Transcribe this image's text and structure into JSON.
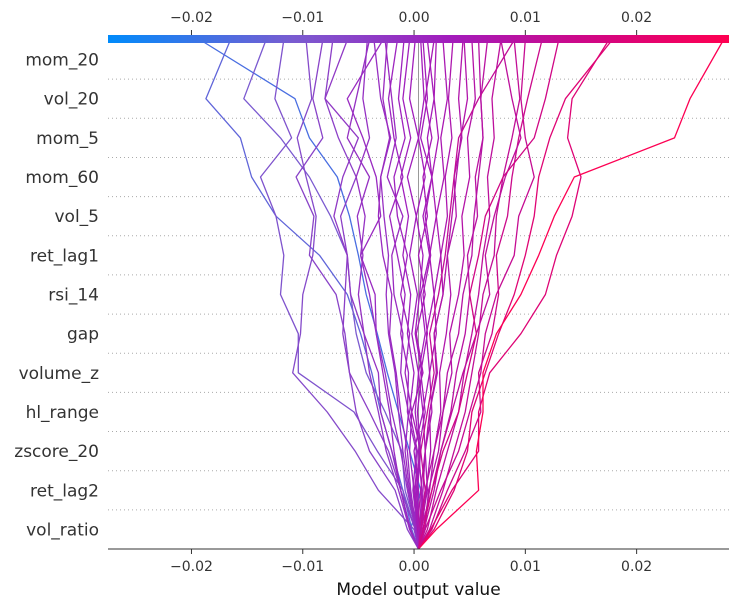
{
  "chart_data": {
    "type": "line",
    "title": "",
    "xlabel": "Model output value",
    "ylabel": "",
    "xlim": [
      -0.0275,
      0.0283
    ],
    "base_value": 0.0004,
    "x_ticks": [
      -0.02,
      -0.01,
      0.0,
      0.01,
      0.02
    ],
    "x_tick_labels": [
      "−0.02",
      "−0.01",
      "0.00",
      "0.01",
      "0.02"
    ],
    "features": [
      "mom_20",
      "vol_20",
      "mom_5",
      "mom_60",
      "vol_5",
      "ret_lag1",
      "rsi_14",
      "gap",
      "volume_z",
      "hl_range",
      "zscore_20",
      "ret_lag2",
      "vol_ratio"
    ],
    "colormap": [
      "#008bfb",
      "#7a5bd0",
      "#a21cbc",
      "#d5057f",
      "#ff0051"
    ],
    "series": [
      {
        "name": "s01",
        "values": [
          0.0004,
          -0.0003,
          0.0006,
          -0.0004,
          -0.0014,
          -0.0024,
          -0.0033,
          -0.0043,
          -0.005,
          -0.0058,
          -0.0069,
          -0.0094,
          -0.0107,
          -0.0192
        ]
      },
      {
        "name": "s02",
        "values": [
          0.0004,
          -0.0002,
          -0.001,
          -0.002,
          -0.003,
          -0.0038,
          -0.0048,
          -0.006,
          -0.0085,
          -0.0124,
          -0.0146,
          -0.0156,
          -0.0187,
          -0.0165
        ]
      },
      {
        "name": "s03",
        "values": [
          0.0004,
          0.0002,
          -0.0008,
          -0.0011,
          -0.0026,
          -0.0043,
          -0.0052,
          -0.0057,
          -0.006,
          -0.0075,
          -0.0094,
          -0.012,
          -0.0153,
          -0.0133
        ]
      },
      {
        "name": "s04",
        "values": [
          0.0004,
          0.0001,
          -0.001,
          -0.0033,
          -0.0054,
          -0.0104,
          -0.0104,
          -0.012,
          -0.0117,
          -0.0124,
          -0.0138,
          -0.011,
          -0.0125,
          -0.0117
        ]
      },
      {
        "name": "s05",
        "values": [
          0.0004,
          0.0,
          -0.0032,
          -0.0053,
          -0.0078,
          -0.0109,
          -0.0102,
          -0.01,
          -0.0091,
          -0.0088,
          -0.0097,
          -0.0105,
          -0.0092,
          -0.0097
        ]
      },
      {
        "name": "s06",
        "values": [
          0.0004,
          -0.0006,
          -0.0017,
          -0.004,
          -0.0052,
          -0.0058,
          -0.0062,
          -0.007,
          -0.0094,
          -0.009,
          -0.0106,
          -0.0082,
          -0.0091,
          -0.0082
        ]
      },
      {
        "name": "s07",
        "values": [
          0.0004,
          0.0001,
          -0.0012,
          -0.0023,
          -0.004,
          -0.0058,
          -0.0064,
          -0.0062,
          -0.006,
          -0.0066,
          -0.0052,
          -0.0068,
          -0.008,
          -0.0073
        ]
      },
      {
        "name": "s08",
        "values": [
          0.0004,
          -0.0004,
          -0.0014,
          -0.0025,
          -0.0032,
          -0.004,
          -0.0045,
          -0.0057,
          -0.006,
          -0.0072,
          -0.0064,
          -0.005,
          -0.008,
          -0.006
        ]
      },
      {
        "name": "s09",
        "values": [
          0.0004,
          -0.0003,
          -0.0012,
          -0.002,
          -0.003,
          -0.0032,
          -0.0045,
          -0.005,
          -0.0046,
          -0.0051,
          -0.004,
          -0.006,
          -0.0052,
          -0.004
        ]
      },
      {
        "name": "s10",
        "values": [
          0.0004,
          -0.0004,
          -0.0012,
          -0.0018,
          -0.0022,
          -0.0028,
          -0.0034,
          -0.0035,
          -0.0048,
          -0.003,
          -0.0034,
          -0.0046,
          -0.006,
          -0.0028
        ]
      },
      {
        "name": "s11",
        "values": [
          0.0004,
          0.0002,
          -0.0005,
          -0.001,
          -0.0014,
          -0.0017,
          -0.0023,
          -0.0025,
          -0.0023,
          -0.0027,
          -0.003,
          -0.0021,
          -0.003,
          -0.0036
        ]
      },
      {
        "name": "s12",
        "values": [
          0.0004,
          0.0001,
          -0.0004,
          -0.0008,
          -0.0005,
          -0.0012,
          -0.001,
          -0.0018,
          -0.002,
          -0.001,
          -0.0024,
          -0.0016,
          -0.002,
          -0.0026
        ]
      },
      {
        "name": "s13",
        "values": [
          0.0004,
          0.0003,
          -0.0001,
          0.0002,
          -0.0006,
          -0.0005,
          -0.0012,
          -0.0008,
          -0.0015,
          -0.0022,
          -0.001,
          -0.0018,
          -0.0023,
          -0.0015
        ]
      },
      {
        "name": "s14",
        "values": [
          0.0004,
          0.0002,
          0.0,
          -0.0004,
          -0.0002,
          -0.0008,
          -0.0004,
          -0.0012,
          -0.0006,
          -0.0015,
          -0.0018,
          -0.0008,
          -0.0014,
          -0.0009
        ]
      },
      {
        "name": "s15",
        "values": [
          0.0004,
          0.0003,
          0.0001,
          0.0003,
          -0.0004,
          0.0,
          -0.0006,
          -0.0003,
          -0.001,
          -0.0005,
          -0.0012,
          -0.0003,
          -0.001,
          -0.0004
        ]
      },
      {
        "name": "s16",
        "values": [
          0.0004,
          0.0004,
          0.0002,
          0.0005,
          0.0001,
          0.0004,
          -0.0002,
          0.0003,
          -0.0004,
          0.0002,
          -0.0006,
          0.0004,
          -0.0004,
          0.0001
        ]
      },
      {
        "name": "s17",
        "values": [
          0.0004,
          0.0005,
          0.0003,
          0.0006,
          0.0003,
          0.0007,
          0.0001,
          0.0005,
          0.0008,
          0.0002,
          0.001,
          0.0004,
          0.0009,
          0.0006
        ]
      },
      {
        "name": "s18",
        "values": [
          0.0004,
          0.0005,
          0.0007,
          0.0004,
          0.001,
          0.0006,
          0.0012,
          0.0008,
          0.0015,
          0.001,
          0.0016,
          0.0012,
          0.0018,
          0.0012
        ]
      },
      {
        "name": "s19",
        "values": [
          0.0004,
          0.0006,
          0.0008,
          0.001,
          0.0008,
          0.0014,
          0.0011,
          0.0018,
          0.0014,
          0.002,
          0.0016,
          0.0022,
          0.0018,
          0.002
        ]
      },
      {
        "name": "s20",
        "values": [
          0.0004,
          0.0006,
          0.0012,
          0.001,
          0.0016,
          0.0014,
          0.002,
          0.0018,
          0.0024,
          0.002,
          0.0027,
          0.0024,
          0.003,
          0.0026
        ]
      },
      {
        "name": "s21",
        "values": [
          0.0004,
          0.0007,
          0.0011,
          0.0015,
          0.0014,
          0.0021,
          0.0018,
          0.0026,
          0.0024,
          0.003,
          0.0028,
          0.0034,
          0.0031,
          0.0035
        ]
      },
      {
        "name": "s22",
        "values": [
          0.0004,
          0.0008,
          0.0014,
          0.0018,
          0.0024,
          0.0023,
          0.0029,
          0.0033,
          0.003,
          0.0038,
          0.0036,
          0.0043,
          0.004,
          0.0044
        ]
      },
      {
        "name": "s23",
        "values": [
          0.0004,
          0.001,
          0.0013,
          0.0022,
          0.0026,
          0.0034,
          0.0032,
          0.004,
          0.0045,
          0.0043,
          0.005,
          0.0048,
          0.0055,
          0.0052
        ]
      },
      {
        "name": "s24",
        "values": [
          0.0004,
          0.0009,
          0.0018,
          0.0024,
          0.0033,
          0.0038,
          0.0046,
          0.005,
          0.0048,
          0.0057,
          0.0055,
          0.0062,
          0.006,
          0.0066
        ]
      },
      {
        "name": "s25",
        "values": [
          0.0004,
          0.0012,
          0.002,
          0.003,
          0.004,
          0.0045,
          0.0052,
          0.0058,
          0.0062,
          0.0068,
          0.0066,
          0.0072,
          0.007,
          0.0078
        ]
      },
      {
        "name": "s26",
        "values": [
          0.0004,
          0.0014,
          0.0026,
          0.0036,
          0.0046,
          0.0052,
          0.0058,
          0.0062,
          0.0072,
          0.0074,
          0.008,
          0.0088,
          0.0095,
          0.009
        ]
      },
      {
        "name": "s27",
        "values": [
          0.0004,
          0.0016,
          0.003,
          0.0046,
          0.006,
          0.0058,
          0.007,
          0.0076,
          0.0074,
          0.0084,
          0.0088,
          0.0094,
          0.0102,
          0.0115
        ]
      },
      {
        "name": "s28",
        "values": [
          0.0004,
          0.0018,
          0.0036,
          0.0048,
          0.0052,
          0.0064,
          0.0076,
          0.009,
          0.01,
          0.0108,
          0.0112,
          0.0122,
          0.0136,
          0.0178
        ]
      },
      {
        "name": "s29",
        "values": [
          0.0004,
          0.0015,
          0.0034,
          0.0058,
          0.0058,
          0.0068,
          0.0096,
          0.0118,
          0.0128,
          0.0142,
          0.015,
          0.0138,
          0.0142,
          0.0175
        ]
      },
      {
        "name": "s30",
        "values": [
          0.0004,
          0.002,
          0.0058,
          0.0056,
          0.0062,
          0.0062,
          0.0074,
          0.0096,
          0.0112,
          0.0126,
          0.0144,
          0.0234,
          0.0248,
          0.0278
        ]
      },
      {
        "name": "s31",
        "values": [
          0.0004,
          0.001,
          0.0024,
          0.004,
          0.005,
          0.006,
          0.0064,
          0.0074,
          0.009,
          0.0094,
          0.0108,
          0.01,
          0.0096,
          0.01
        ]
      },
      {
        "name": "s32",
        "values": [
          0.0004,
          0.0006,
          0.0016,
          0.0024,
          0.0034,
          0.0044,
          0.0056,
          0.0068,
          0.0064,
          0.0072,
          0.0082,
          0.0096,
          0.0088,
          0.0078
        ]
      },
      {
        "name": "s33",
        "values": [
          0.0004,
          0.0004,
          0.001,
          0.0018,
          0.0026,
          0.003,
          0.004,
          0.0044,
          0.0052,
          0.0054,
          0.0058,
          0.0062,
          0.006,
          0.0058
        ]
      },
      {
        "name": "s34",
        "values": [
          0.0004,
          0.0003,
          0.0006,
          0.001,
          0.0014,
          0.002,
          0.0018,
          0.0026,
          0.003,
          0.0034,
          0.0038,
          0.0042,
          0.0048,
          0.0045
        ]
      },
      {
        "name": "s35",
        "values": [
          0.0004,
          0.0002,
          0.0004,
          0.0,
          0.0008,
          0.0004,
          0.001,
          0.0006,
          0.0014,
          0.0008,
          0.0016,
          0.0006,
          0.0012,
          0.0008
        ]
      },
      {
        "name": "s36",
        "values": [
          0.0004,
          0.0004,
          0.0,
          0.0006,
          -0.0002,
          0.0008,
          0.0002,
          0.001,
          0.0004,
          0.0012,
          0.0008,
          0.0016,
          0.001,
          0.0018
        ]
      },
      {
        "name": "s37",
        "values": [
          0.0004,
          0.0001,
          -0.0006,
          -0.0012,
          -0.002,
          -0.0026,
          -0.0034,
          -0.004,
          -0.0048,
          -0.0044,
          -0.0052,
          -0.004,
          -0.0046,
          -0.0042
        ]
      },
      {
        "name": "s38",
        "values": [
          0.0004,
          0.0002,
          -0.0003,
          -0.0006,
          -0.0012,
          -0.0016,
          -0.0022,
          -0.002,
          -0.0028,
          -0.0032,
          -0.003,
          -0.0022,
          -0.0028,
          -0.0024
        ]
      },
      {
        "name": "s39",
        "values": [
          0.0004,
          0.0006,
          0.001,
          0.0006,
          0.0012,
          0.0018,
          0.0014,
          0.0022,
          0.0028,
          0.0032,
          0.0036,
          0.004,
          0.0058,
          0.009
        ]
      },
      {
        "name": "s40",
        "values": [
          0.0004,
          0.0008,
          0.0016,
          0.0026,
          0.004,
          0.0048,
          0.0056,
          0.005,
          0.0058,
          0.0064,
          0.008,
          0.0108,
          0.0118,
          0.013
        ]
      }
    ]
  }
}
